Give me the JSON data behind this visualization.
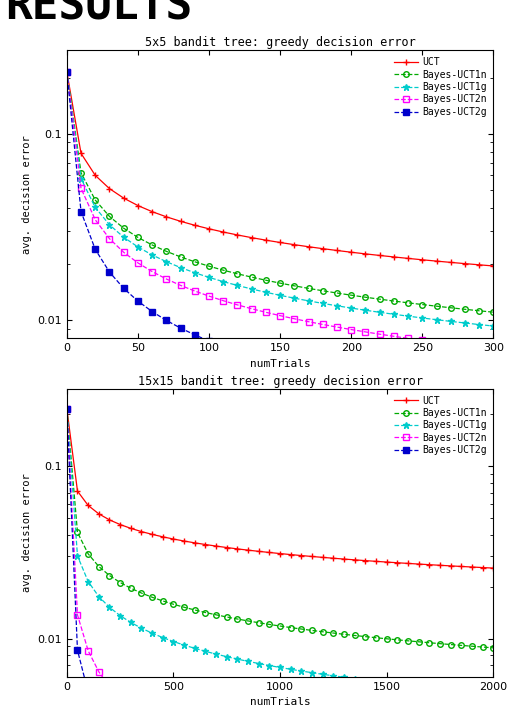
{
  "plot1": {
    "title": "5x5 bandit tree: greedy decision error",
    "xlabel": "numTrials",
    "ylabel": "avg. decision error",
    "xlim": [
      0,
      300
    ],
    "ylim": [
      0.008,
      0.28
    ],
    "xticks": [
      0,
      50,
      100,
      150,
      200,
      250,
      300
    ],
    "series": {
      "UCT": {
        "color": "#ff0000",
        "linestyle": "-",
        "marker": "+",
        "markersize": 4,
        "markevery": 1,
        "linewidth": 0.9
      },
      "Bayes-UCT1n": {
        "color": "#00aa00",
        "linestyle": "--",
        "marker": "o",
        "markersize": 4,
        "markevery": 1,
        "linewidth": 0.9
      },
      "Bayes-UCT1g": {
        "color": "#00cccc",
        "linestyle": "--",
        "marker": "*",
        "markersize": 5,
        "markevery": 1,
        "linewidth": 0.9
      },
      "Bayes-UCT2n": {
        "color": "#ff00ff",
        "linestyle": "--",
        "marker": "s",
        "markersize": 4,
        "markevery": 1,
        "linewidth": 0.9
      },
      "Bayes-UCT2g": {
        "color": "#0000cc",
        "linestyle": "--",
        "marker": "s",
        "markersize": 5,
        "markevery": 1,
        "linewidth": 0.9
      }
    }
  },
  "plot2": {
    "title": "15x15 bandit tree: greedy decision error",
    "xlabel": "numTrials",
    "ylabel": "avg. decision error",
    "xlim": [
      0,
      2000
    ],
    "ylim": [
      0.006,
      0.28
    ],
    "xticks": [
      0,
      500,
      1000,
      1500,
      2000
    ],
    "series": {
      "UCT": {
        "color": "#ff0000",
        "linestyle": "-",
        "marker": "+",
        "markersize": 4,
        "markevery": 1,
        "linewidth": 0.9
      },
      "Bayes-UCT1n": {
        "color": "#00aa00",
        "linestyle": "--",
        "marker": "o",
        "markersize": 4,
        "markevery": 1,
        "linewidth": 0.9
      },
      "Bayes-UCT1g": {
        "color": "#00cccc",
        "linestyle": "--",
        "marker": "*",
        "markersize": 5,
        "markevery": 1,
        "linewidth": 0.9
      },
      "Bayes-UCT2n": {
        "color": "#ff00ff",
        "linestyle": "--",
        "marker": "s",
        "markersize": 4,
        "markevery": 1,
        "linewidth": 0.9
      },
      "Bayes-UCT2g": {
        "color": "#0000cc",
        "linestyle": "--",
        "marker": "s",
        "markersize": 5,
        "markevery": 1,
        "linewidth": 0.9
      }
    }
  },
  "background_color": "#ffffff"
}
